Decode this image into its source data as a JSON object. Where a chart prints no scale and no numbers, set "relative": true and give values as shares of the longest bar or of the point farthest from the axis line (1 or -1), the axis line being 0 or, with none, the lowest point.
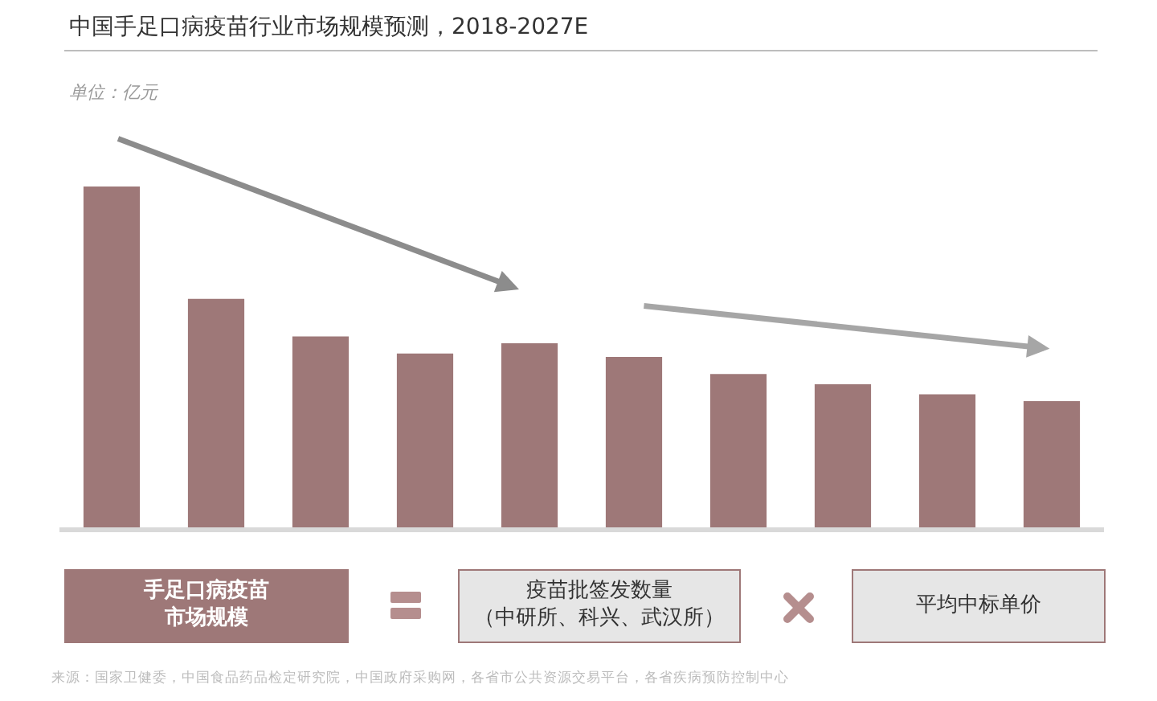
{
  "chart_data": {
    "type": "bar",
    "title": "中国手足口病疫苗行业市场规模预测，2018-2027E",
    "subtitle": "单位：亿元",
    "categories": [
      null,
      null,
      null,
      null,
      null,
      null,
      null,
      null,
      null,
      null
    ],
    "values": [
      1,
      0.67,
      0.56,
      0.51,
      0.54,
      0.5,
      0.45,
      0.42,
      0.39,
      0.37
    ],
    "color": "#9e7878",
    "relative": true,
    "annotations": [
      "手足口病疫苗市场规模",
      "疫苗批签发数量（中研所、科兴、武汉所）",
      "平均中标单价",
      "来源：国家卫健委，中国食品药品检定研究院，中国政府采购网，各省市公共资源交易平台，各省疾病预防控制中心"
    ]
  }
}
